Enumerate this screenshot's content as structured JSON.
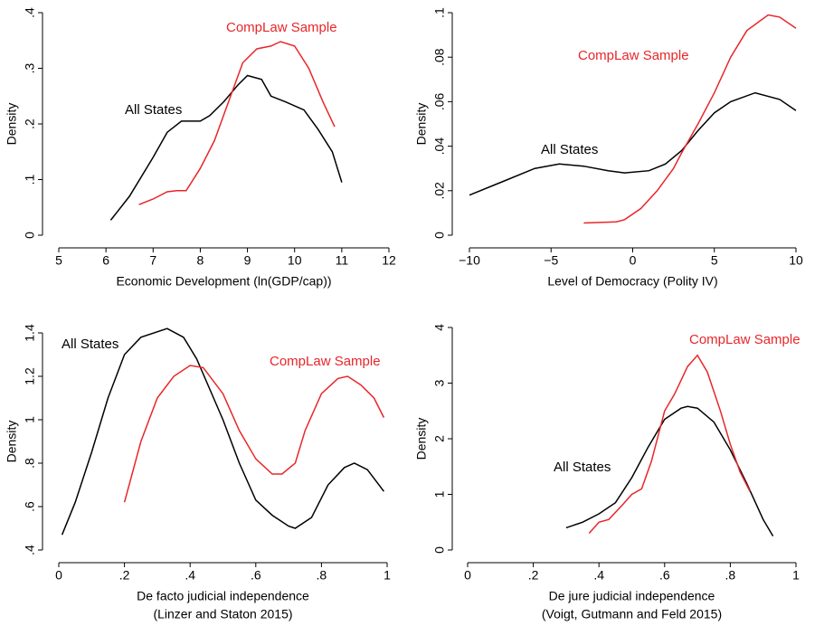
{
  "chart_data": [
    {
      "type": "line",
      "ylabel": "Density",
      "xlabel": "Economic Development (ln(GDP/cap))",
      "xlim": [
        5,
        12
      ],
      "xticks": [
        5,
        6,
        7,
        8,
        9,
        10,
        11,
        12
      ],
      "ylim": [
        0,
        0.4
      ],
      "yticks": [
        0,
        {
          "value": 0.1,
          "label": ".1"
        },
        {
          "value": 0.2,
          "label": ".2"
        },
        {
          "value": 0.3,
          "label": ".3"
        },
        {
          "value": 0.4,
          "label": ".4"
        }
      ],
      "series": [
        {
          "name": "All States",
          "color": "#000000",
          "x": [
            6.1,
            6.5,
            7.0,
            7.3,
            7.6,
            8.0,
            8.2,
            8.5,
            8.8,
            9.0,
            9.3,
            9.5,
            9.8,
            10.2,
            10.5,
            10.8,
            11.0
          ],
          "values": [
            0.027,
            0.07,
            0.14,
            0.185,
            0.205,
            0.205,
            0.215,
            0.24,
            0.27,
            0.287,
            0.28,
            0.25,
            0.24,
            0.225,
            0.19,
            0.15,
            0.095
          ]
        },
        {
          "name": "CompLaw Sample",
          "color": "#e8262a",
          "x": [
            6.7,
            7.0,
            7.3,
            7.5,
            7.7,
            8.0,
            8.3,
            8.6,
            8.9,
            9.2,
            9.5,
            9.7,
            10.0,
            10.3,
            10.6,
            10.85
          ],
          "values": [
            0.055,
            0.065,
            0.078,
            0.08,
            0.08,
            0.12,
            0.17,
            0.24,
            0.31,
            0.335,
            0.34,
            0.348,
            0.34,
            0.3,
            0.24,
            0.195
          ]
        }
      ]
    },
    {
      "type": "line",
      "ylabel": "Density",
      "xlabel": "Level of Democracy (Polity IV)",
      "xlim": [
        -10,
        10
      ],
      "xticks": [
        {
          "value": -10,
          "label": "−10"
        },
        {
          "value": -5,
          "label": "−5"
        },
        0,
        5,
        10
      ],
      "ylim": [
        0,
        0.1
      ],
      "yticks": [
        0,
        {
          "value": 0.02,
          "label": ".02"
        },
        {
          "value": 0.04,
          "label": ".04"
        },
        {
          "value": 0.06,
          "label": ".06"
        },
        {
          "value": 0.08,
          "label": ".08"
        },
        {
          "value": 0.1,
          "label": ".1"
        }
      ],
      "series": [
        {
          "name": "All States",
          "color": "#000000",
          "x": [
            -10,
            -8,
            -6,
            -4.5,
            -3,
            -1.5,
            -0.5,
            1,
            2,
            3,
            4,
            5,
            6,
            7.5,
            9,
            10
          ],
          "values": [
            0.018,
            0.024,
            0.03,
            0.032,
            0.031,
            0.029,
            0.028,
            0.029,
            0.032,
            0.038,
            0.047,
            0.055,
            0.06,
            0.064,
            0.061,
            0.056
          ]
        },
        {
          "name": "CompLaw Sample",
          "color": "#e8262a",
          "x": [
            -3,
            -1,
            -0.5,
            0.5,
            1.5,
            2.5,
            3,
            4,
            5,
            6,
            7,
            8.3,
            9,
            10
          ],
          "values": [
            0.0055,
            0.006,
            0.007,
            0.012,
            0.02,
            0.03,
            0.037,
            0.05,
            0.064,
            0.08,
            0.092,
            0.099,
            0.098,
            0.093
          ]
        }
      ]
    },
    {
      "type": "line",
      "ylabel": "Density",
      "xlabel": [
        "De facto judicial independence",
        "(Linzer and Staton 2015)"
      ],
      "xlim": [
        0,
        1
      ],
      "xticks": [
        0,
        {
          "value": 0.2,
          "label": ".2"
        },
        {
          "value": 0.4,
          "label": ".4"
        },
        {
          "value": 0.6,
          "label": ".6"
        },
        {
          "value": 0.8,
          "label": ".8"
        },
        1
      ],
      "ylim": [
        0.4,
        1.4
      ],
      "yticks": [
        {
          "value": 0.4,
          "label": ".4"
        },
        {
          "value": 0.6,
          "label": ".6"
        },
        {
          "value": 0.8,
          "label": ".8"
        },
        1,
        1.2,
        1.4
      ],
      "series": [
        {
          "name": "All States",
          "color": "#000000",
          "x": [
            0.01,
            0.05,
            0.1,
            0.15,
            0.2,
            0.25,
            0.33,
            0.38,
            0.42,
            0.5,
            0.55,
            0.6,
            0.65,
            0.7,
            0.72,
            0.77,
            0.82,
            0.87,
            0.9,
            0.94,
            0.99
          ],
          "values": [
            0.47,
            0.62,
            0.85,
            1.1,
            1.3,
            1.38,
            1.42,
            1.38,
            1.28,
            1.0,
            0.8,
            0.63,
            0.56,
            0.51,
            0.5,
            0.55,
            0.7,
            0.78,
            0.8,
            0.77,
            0.67
          ]
        },
        {
          "name": "CompLaw Sample",
          "color": "#e8262a",
          "x": [
            0.2,
            0.25,
            0.3,
            0.35,
            0.4,
            0.44,
            0.5,
            0.55,
            0.6,
            0.65,
            0.68,
            0.72,
            0.75,
            0.8,
            0.85,
            0.88,
            0.92,
            0.96,
            0.99
          ],
          "values": [
            0.62,
            0.9,
            1.1,
            1.2,
            1.25,
            1.24,
            1.12,
            0.95,
            0.82,
            0.75,
            0.75,
            0.8,
            0.95,
            1.12,
            1.19,
            1.2,
            1.16,
            1.1,
            1.01
          ]
        }
      ]
    },
    {
      "type": "line",
      "ylabel": "Density",
      "xlabel": [
        "De jure judicial independence",
        "(Voigt, Gutmann and Feld 2015)"
      ],
      "xlim": [
        0,
        1
      ],
      "xticks": [
        0,
        {
          "value": 0.2,
          "label": ".2"
        },
        {
          "value": 0.4,
          "label": ".4"
        },
        {
          "value": 0.6,
          "label": ".6"
        },
        {
          "value": 0.8,
          "label": ".8"
        },
        1
      ],
      "ylim": [
        0,
        4
      ],
      "yticks": [
        0,
        1,
        2,
        3,
        4
      ],
      "series": [
        {
          "name": "All States",
          "color": "#000000",
          "x": [
            0.3,
            0.35,
            0.4,
            0.45,
            0.5,
            0.55,
            0.6,
            0.65,
            0.67,
            0.7,
            0.75,
            0.8,
            0.85,
            0.9,
            0.93
          ],
          "values": [
            0.4,
            0.5,
            0.65,
            0.85,
            1.3,
            1.85,
            2.35,
            2.55,
            2.58,
            2.55,
            2.3,
            1.8,
            1.2,
            0.55,
            0.25
          ]
        },
        {
          "name": "CompLaw Sample",
          "color": "#e8262a",
          "x": [
            0.37,
            0.4,
            0.43,
            0.47,
            0.5,
            0.53,
            0.56,
            0.6,
            0.63,
            0.67,
            0.7,
            0.73,
            0.77,
            0.8,
            0.83,
            0.86
          ],
          "values": [
            0.3,
            0.5,
            0.55,
            0.8,
            1.0,
            1.1,
            1.6,
            2.5,
            2.8,
            3.3,
            3.5,
            3.2,
            2.5,
            1.9,
            1.4,
            1.05
          ]
        }
      ]
    }
  ]
}
